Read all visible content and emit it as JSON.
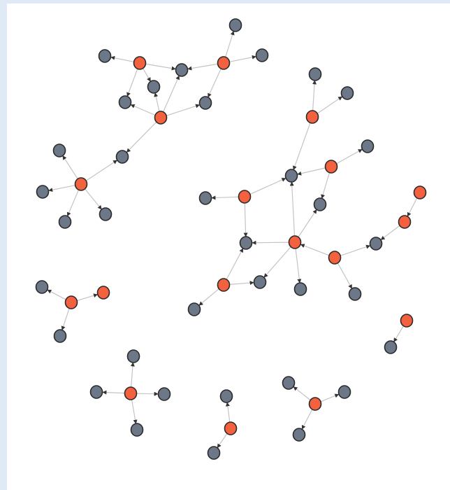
{
  "graph": {
    "colors": {
      "source_node": "#f4613f",
      "target_node": "#6c7787",
      "edge": "#c4c4c4",
      "arrow": "#333333",
      "outline": "#2a2a2a",
      "background": "#ffffff",
      "frame": "#dfeaf6"
    },
    "node_types": [
      "source",
      "target"
    ]
  }
}
